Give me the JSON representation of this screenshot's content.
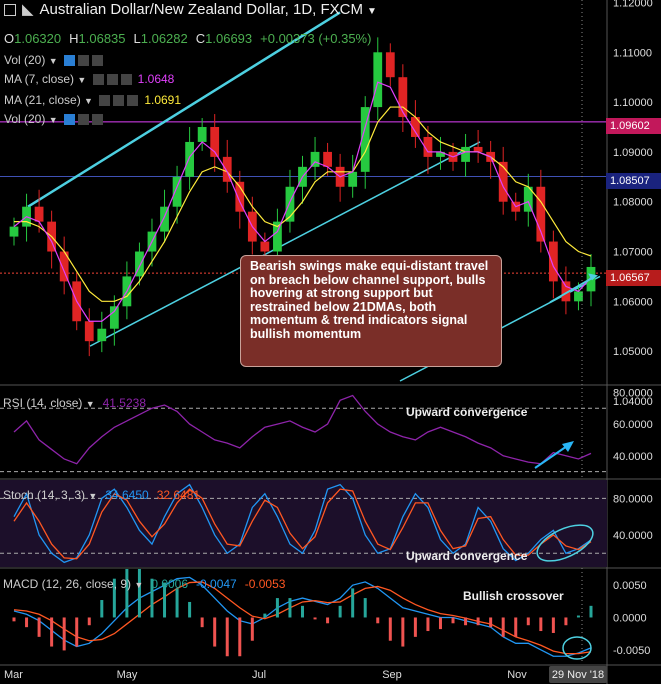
{
  "header": {
    "title": "Australian Dollar/New Zealand Dollar, 1D, FXCM",
    "ohlc": {
      "o_label": "O",
      "o": "1.06320",
      "h_label": "H",
      "h": "1.06835",
      "l_label": "L",
      "l": "1.06282",
      "c_label": "C",
      "c": "1.06693",
      "change": "+0.00373 (+0.35%)"
    }
  },
  "indicators": [
    {
      "label": "Vol (20)",
      "value": ""
    },
    {
      "label": "MA (7, close)",
      "value": "1.0648",
      "color": "#e040fb"
    },
    {
      "label": "MA (21, close)",
      "value": "1.0691",
      "color": "#ffeb3b"
    },
    {
      "label": "Vol (20)",
      "value": ""
    }
  ],
  "panes": {
    "rsi": {
      "label": "RSI (14, close)",
      "value": "41.5238",
      "annotation": "Upward convergence"
    },
    "stoch": {
      "label": "Stoch (14, 3, 3)",
      "k": "34.6450",
      "d": "32.6481",
      "annotation": "Upward convergence"
    },
    "macd": {
      "label": "MACD (12, 26, close, 9)",
      "hist": "0.0006",
      "macd": "-0.0047",
      "signal": "-0.0053",
      "annotation": "Bullish crossover"
    }
  },
  "callout": "Bearish swings make equi-distant travel on breach below channel support, bulls hovering at strong support but restrained below 21DMAs, both momentum & trend indicators signal bullish momentum",
  "price_tags": [
    {
      "label": "1.09602",
      "color": "#c2185b"
    },
    {
      "label": "1.08507",
      "color": "#1a237e"
    },
    {
      "label": "1.06567",
      "color": "#b71c1c"
    }
  ],
  "colors": {
    "up": "#26c940",
    "down": "#e02424",
    "ma7": "#e040fb",
    "ma21": "#ffeb3b",
    "channel": "#4dd0e1",
    "hline_top": "#e040fb",
    "hline_mid": "#3f51b5",
    "hline_low": "#f44336"
  },
  "chart_data": [
    {
      "type": "candlestick",
      "title": "Australian Dollar/New Zealand Dollar, 1D, FXCM",
      "x_ticks": [
        "Mar",
        "May",
        "Jul",
        "Sep",
        "Nov"
      ],
      "x_cursor_label": "29 Nov '18",
      "y_ticks": [
        "1.12000",
        "1.11000",
        "1.10000",
        "1.09000",
        "1.08000",
        "1.07000",
        "1.06000",
        "1.05000",
        "1.04000"
      ],
      "ylim": [
        1.0434,
        1.1205
      ],
      "horizontal_levels": [
        1.09602,
        1.08507,
        1.06567
      ],
      "series_close_approx": [
        1.075,
        1.079,
        1.076,
        1.07,
        1.064,
        1.056,
        1.052,
        1.0545,
        1.059,
        1.065,
        1.07,
        1.074,
        1.079,
        1.085,
        1.092,
        1.095,
        1.089,
        1.084,
        1.078,
        1.072,
        1.07,
        1.076,
        1.083,
        1.087,
        1.09,
        1.087,
        1.083,
        1.086,
        1.099,
        1.11,
        1.105,
        1.097,
        1.093,
        1.089,
        1.09,
        1.088,
        1.091,
        1.09,
        1.088,
        1.08,
        1.078,
        1.083,
        1.072,
        1.064,
        1.06,
        1.062,
        1.0669
      ],
      "ma7_approx": [
        1.075,
        1.077,
        1.076,
        1.072,
        1.066,
        1.06,
        1.056,
        1.056,
        1.058,
        1.062,
        1.067,
        1.072,
        1.077,
        1.083,
        1.089,
        1.092,
        1.09,
        1.086,
        1.08,
        1.075,
        1.072,
        1.074,
        1.08,
        1.085,
        1.088,
        1.087,
        1.085,
        1.086,
        1.095,
        1.104,
        1.103,
        1.098,
        1.094,
        1.09,
        1.09,
        1.089,
        1.09,
        1.09,
        1.089,
        1.083,
        1.079,
        1.08,
        1.074,
        1.067,
        1.063,
        1.062,
        1.0648
      ],
      "ma21_approx": [
        1.076,
        1.076,
        1.075,
        1.073,
        1.07,
        1.066,
        1.062,
        1.06,
        1.06,
        1.061,
        1.064,
        1.068,
        1.072,
        1.077,
        1.082,
        1.086,
        1.087,
        1.086,
        1.083,
        1.079,
        1.076,
        1.075,
        1.077,
        1.08,
        1.084,
        1.086,
        1.086,
        1.086,
        1.09,
        1.096,
        1.099,
        1.099,
        1.097,
        1.094,
        1.092,
        1.091,
        1.09,
        1.09,
        1.089,
        1.087,
        1.084,
        1.083,
        1.08,
        1.076,
        1.072,
        1.07,
        1.0691
      ]
    },
    {
      "type": "line",
      "title": "RSI (14, close)",
      "y_ticks": [
        "80.0000",
        "60.0000",
        "40.0000"
      ],
      "ylim": [
        26,
        84
      ],
      "levels": [
        70,
        30
      ],
      "values": [
        55,
        62,
        50,
        44,
        38,
        35,
        45,
        52,
        58,
        62,
        66,
        70,
        72,
        68,
        60,
        55,
        50,
        48,
        45,
        52,
        58,
        60,
        62,
        58,
        55,
        60,
        75,
        78,
        68,
        60,
        55,
        52,
        50,
        55,
        58,
        55,
        52,
        48,
        45,
        40,
        38,
        36,
        35,
        42,
        40,
        38,
        41.5238
      ]
    },
    {
      "type": "line",
      "title": "Stoch (14, 3, 3)",
      "y_ticks": [
        "80.0000",
        "40.0000"
      ],
      "ylim": [
        5,
        100
      ],
      "levels": [
        80,
        20
      ],
      "series": [
        {
          "name": "%K",
          "values": [
            60,
            85,
            40,
            20,
            10,
            15,
            40,
            80,
            90,
            70,
            45,
            30,
            60,
            85,
            95,
            70,
            40,
            20,
            30,
            70,
            85,
            60,
            30,
            20,
            45,
            90,
            95,
            80,
            40,
            20,
            25,
            60,
            85,
            70,
            35,
            20,
            30,
            70,
            55,
            25,
            12,
            20,
            35,
            45,
            20,
            25,
            34.645
          ]
        },
        {
          "name": "%D",
          "values": [
            55,
            75,
            55,
            30,
            15,
            14,
            30,
            65,
            85,
            78,
            55,
            38,
            52,
            75,
            90,
            80,
            52,
            30,
            28,
            55,
            78,
            70,
            42,
            25,
            38,
            75,
            90,
            88,
            55,
            30,
            24,
            48,
            75,
            75,
            45,
            25,
            28,
            58,
            60,
            35,
            18,
            18,
            30,
            40,
            28,
            24,
            32.6481
          ]
        }
      ]
    },
    {
      "type": "line",
      "title": "MACD (12, 26, close, 9)",
      "y_ticks": [
        "0.0050",
        "0.0000",
        "-0.0050"
      ],
      "ylim": [
        -0.0072,
        0.0075
      ],
      "series": [
        {
          "name": "MACD",
          "values": [
            0.001,
            0.0005,
            -0.0005,
            -0.002,
            -0.0035,
            -0.0045,
            -0.004,
            -0.0025,
            -0.0005,
            0.0015,
            0.003,
            0.004,
            0.005,
            0.006,
            0.0062,
            0.005,
            0.003,
            0.001,
            -0.0005,
            -0.001,
            0.0,
            0.0015,
            0.0025,
            0.003,
            0.0025,
            0.002,
            0.003,
            0.005,
            0.0055,
            0.0045,
            0.003,
            0.0015,
            0.001,
            0.0005,
            0.0,
            0.0,
            -0.0005,
            -0.001,
            -0.0015,
            -0.003,
            -0.004,
            -0.004,
            -0.005,
            -0.006,
            -0.006,
            -0.0055,
            -0.0047
          ]
        },
        {
          "name": "Signal",
          "values": [
            0.0012,
            0.001,
            0.0005,
            -0.0005,
            -0.0018,
            -0.003,
            -0.0036,
            -0.0034,
            -0.0025,
            -0.001,
            0.0005,
            0.002,
            0.0032,
            0.0045,
            0.0054,
            0.0055,
            0.0045,
            0.003,
            0.0015,
            0.0002,
            -0.0002,
            0.0005,
            0.0015,
            0.0024,
            0.0026,
            0.0023,
            0.0024,
            0.0035,
            0.0045,
            0.0048,
            0.0042,
            0.003,
            0.002,
            0.0012,
            0.0006,
            0.0003,
            -0.0001,
            -0.0006,
            -0.001,
            -0.002,
            -0.003,
            -0.0036,
            -0.0043,
            -0.0052,
            -0.0056,
            -0.0056,
            -0.0053
          ]
        }
      ]
    }
  ]
}
